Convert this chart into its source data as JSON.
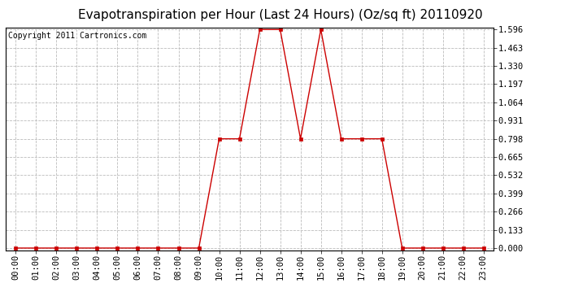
{
  "title": "Evapotranspiration per Hour (Last 24 Hours) (Oz/sq ft) 20110920",
  "copyright": "Copyright 2011 Cartronics.com",
  "hours": [
    "00:00",
    "01:00",
    "02:00",
    "03:00",
    "04:00",
    "05:00",
    "06:00",
    "07:00",
    "08:00",
    "09:00",
    "10:00",
    "11:00",
    "12:00",
    "13:00",
    "14:00",
    "15:00",
    "16:00",
    "17:00",
    "18:00",
    "19:00",
    "20:00",
    "21:00",
    "22:00",
    "23:00"
  ],
  "values": [
    0.0,
    0.0,
    0.0,
    0.0,
    0.0,
    0.0,
    0.0,
    0.0,
    0.0,
    0.0,
    0.798,
    0.798,
    1.596,
    1.596,
    0.798,
    1.596,
    0.798,
    0.798,
    0.798,
    0.0,
    0.0,
    0.0,
    0.0,
    0.0
  ],
  "yticks": [
    0.0,
    0.133,
    0.266,
    0.399,
    0.532,
    0.665,
    0.798,
    0.931,
    1.064,
    1.197,
    1.33,
    1.463,
    1.596
  ],
  "ymin": 0.0,
  "ymax": 1.596,
  "line_color": "#cc0000",
  "marker_color": "#cc0000",
  "bg_color": "#ffffff",
  "plot_bg_color": "#ffffff",
  "grid_color": "#bbbbbb",
  "title_fontsize": 11,
  "copyright_fontsize": 7,
  "tick_fontsize": 7.5,
  "axis_label_color": "#000000"
}
